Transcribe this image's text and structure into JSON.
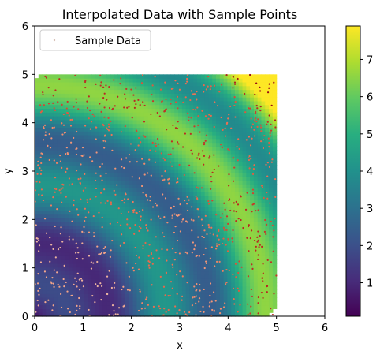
{
  "chart_data": {
    "type": "heatmap",
    "title": "Interpolated Data with Sample Points",
    "xlabel": "x",
    "ylabel": "y",
    "xlim": [
      0,
      6
    ],
    "ylim": [
      0,
      6
    ],
    "x_ticks": [
      "0",
      "1",
      "2",
      "3",
      "4",
      "5",
      "6"
    ],
    "y_ticks": [
      "0",
      "1",
      "2",
      "3",
      "4",
      "5",
      "6"
    ],
    "data_extent": {
      "x": [
        0,
        5
      ],
      "y": [
        0,
        5
      ]
    },
    "colormap": "viridis",
    "colorbar_range": [
      0.1,
      7.9
    ],
    "colorbar_ticks": [
      "1",
      "2",
      "3",
      "4",
      "5",
      "6",
      "7"
    ],
    "colorbar_tick_values": [
      1,
      2,
      3,
      4,
      5,
      6,
      7
    ],
    "series": [
      {
        "name": "Sample Data",
        "marker": "point",
        "color_encoding": "value via coolwarm-like colormap",
        "count_estimate": 1000
      }
    ],
    "legend": {
      "position": "top-left",
      "entries": [
        "Sample Data"
      ]
    },
    "grid": false,
    "function_description": "radial ripple pattern increasing with distance from origin"
  }
}
